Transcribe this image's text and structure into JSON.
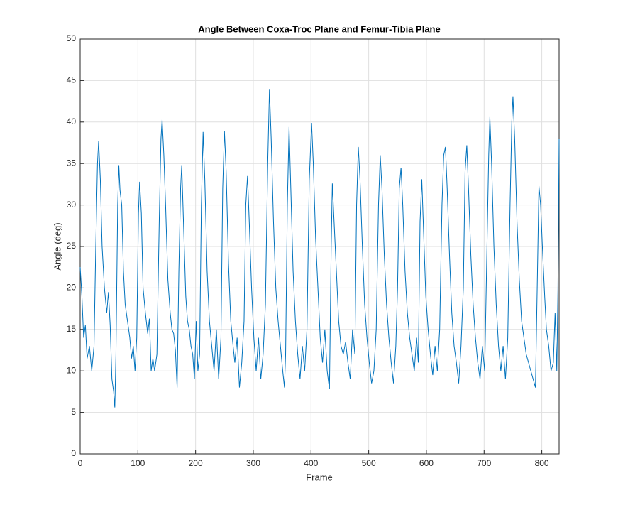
{
  "chart_data": {
    "type": "line",
    "title": "Angle Between Coxa-Troc Plane and Femur-Tibia Plane",
    "xlabel": "Frame",
    "ylabel": "Angle (deg)",
    "xlim": [
      0,
      830
    ],
    "ylim": [
      0,
      50
    ],
    "xticks": [
      0,
      100,
      200,
      300,
      400,
      500,
      600,
      700,
      800
    ],
    "yticks": [
      0,
      5,
      10,
      15,
      20,
      25,
      30,
      35,
      40,
      45,
      50
    ],
    "grid": true,
    "color": "#0072bd",
    "x": [
      0,
      3,
      6,
      9,
      12,
      16,
      20,
      24,
      27,
      30,
      32,
      35,
      38,
      42,
      46,
      49,
      52,
      55,
      58,
      60,
      62,
      65,
      67,
      69,
      72,
      75,
      78,
      82,
      86,
      89,
      92,
      95,
      98,
      101,
      103,
      106,
      109,
      113,
      117,
      120,
      123,
      126,
      129,
      133,
      137,
      140,
      142,
      145,
      148,
      152,
      156,
      159,
      162,
      165,
      168,
      171,
      174,
      176,
      179,
      183,
      186,
      189,
      192,
      195,
      198,
      201,
      204,
      207,
      210,
      213,
      216,
      220,
      224,
      228,
      232,
      236,
      240,
      244,
      247,
      250,
      253,
      257,
      261,
      265,
      268,
      272,
      276,
      280,
      284,
      287,
      290,
      293,
      297,
      301,
      305,
      309,
      313,
      317,
      321,
      325,
      328,
      331,
      335,
      339,
      343,
      347,
      351,
      354,
      356,
      359,
      362,
      365,
      369,
      373,
      377,
      381,
      385,
      389,
      393,
      397,
      401,
      404,
      408,
      412,
      416,
      420,
      424,
      428,
      432,
      435,
      437,
      440,
      444,
      448,
      452,
      456,
      460,
      464,
      468,
      472,
      476,
      479,
      482,
      485,
      489,
      493,
      497,
      501,
      505,
      509,
      513,
      517,
      520,
      523,
      527,
      531,
      535,
      539,
      543,
      547,
      550,
      553,
      556,
      559,
      563,
      567,
      571,
      575,
      579,
      583,
      586,
      589,
      592,
      595,
      599,
      603,
      607,
      611,
      615,
      619,
      623,
      627,
      630,
      633,
      636,
      640,
      644,
      648,
      652,
      656,
      660,
      664,
      667,
      670,
      673,
      677,
      681,
      685,
      689,
      693,
      697,
      701,
      705,
      708,
      710,
      713,
      717,
      721,
      725,
      729,
      733,
      737,
      741,
      745,
      748,
      750,
      753,
      757,
      761,
      765,
      769,
      773,
      777,
      781,
      785,
      789,
      792,
      795,
      798,
      801,
      805,
      808,
      812,
      816,
      820,
      823,
      826,
      828,
      830
    ],
    "values": [
      22.5,
      19,
      14,
      15.5,
      11.5,
      13,
      10,
      13,
      25,
      35,
      37.7,
      33,
      25,
      20,
      17,
      19.5,
      15.5,
      9,
      7.5,
      5.6,
      12,
      30,
      34.8,
      31.8,
      30,
      22,
      18,
      16,
      14,
      11.5,
      13,
      10,
      14,
      29,
      32.8,
      29,
      20,
      17,
      14.5,
      16.3,
      10,
      11.5,
      10,
      12,
      28,
      38,
      40.3,
      36,
      30,
      21,
      17,
      15,
      14.5,
      12.5,
      8,
      22,
      32,
      34.8,
      28,
      19,
      16,
      15,
      13,
      12,
      9,
      16,
      10,
      12,
      30,
      38.8,
      33,
      22,
      16,
      13,
      10,
      15,
      9,
      14,
      32,
      38.9,
      34,
      23,
      16,
      13,
      11,
      14,
      8,
      11,
      16,
      30,
      33.5,
      28,
      20,
      14,
      10,
      14,
      9,
      12,
      18,
      35,
      43.9,
      38,
      28,
      20,
      16,
      13,
      10,
      8,
      12,
      30,
      39.4,
      32,
      22,
      16,
      12,
      9,
      13,
      10,
      15,
      33,
      39.9,
      35,
      26,
      20,
      14,
      11,
      15,
      10,
      7.8,
      25,
      32.6,
      28,
      22,
      16,
      13,
      12,
      13.5,
      11,
      9,
      15,
      12,
      30,
      37,
      33,
      25,
      18,
      14,
      11,
      8.5,
      10,
      15,
      30,
      36,
      32,
      24,
      18,
      14,
      11,
      8.5,
      13,
      20,
      32,
      34.5,
      30,
      22,
      17,
      14,
      12,
      10,
      14,
      11,
      28,
      33.1,
      27,
      19,
      15,
      12,
      9.5,
      13,
      10,
      15,
      30,
      36,
      37,
      32,
      24,
      17,
      13,
      11,
      8.5,
      13,
      20,
      34,
      37.2,
      32,
      24,
      18,
      14,
      11,
      9,
      13,
      10,
      25,
      36,
      40.6,
      35,
      25,
      18,
      13,
      10,
      13,
      9,
      14,
      30,
      40,
      43.1,
      38,
      28,
      21,
      16,
      14,
      12,
      11,
      10,
      9,
      8,
      20,
      32.3,
      30,
      25,
      19,
      15,
      13,
      10,
      11,
      17,
      10,
      20,
      38
    ]
  }
}
